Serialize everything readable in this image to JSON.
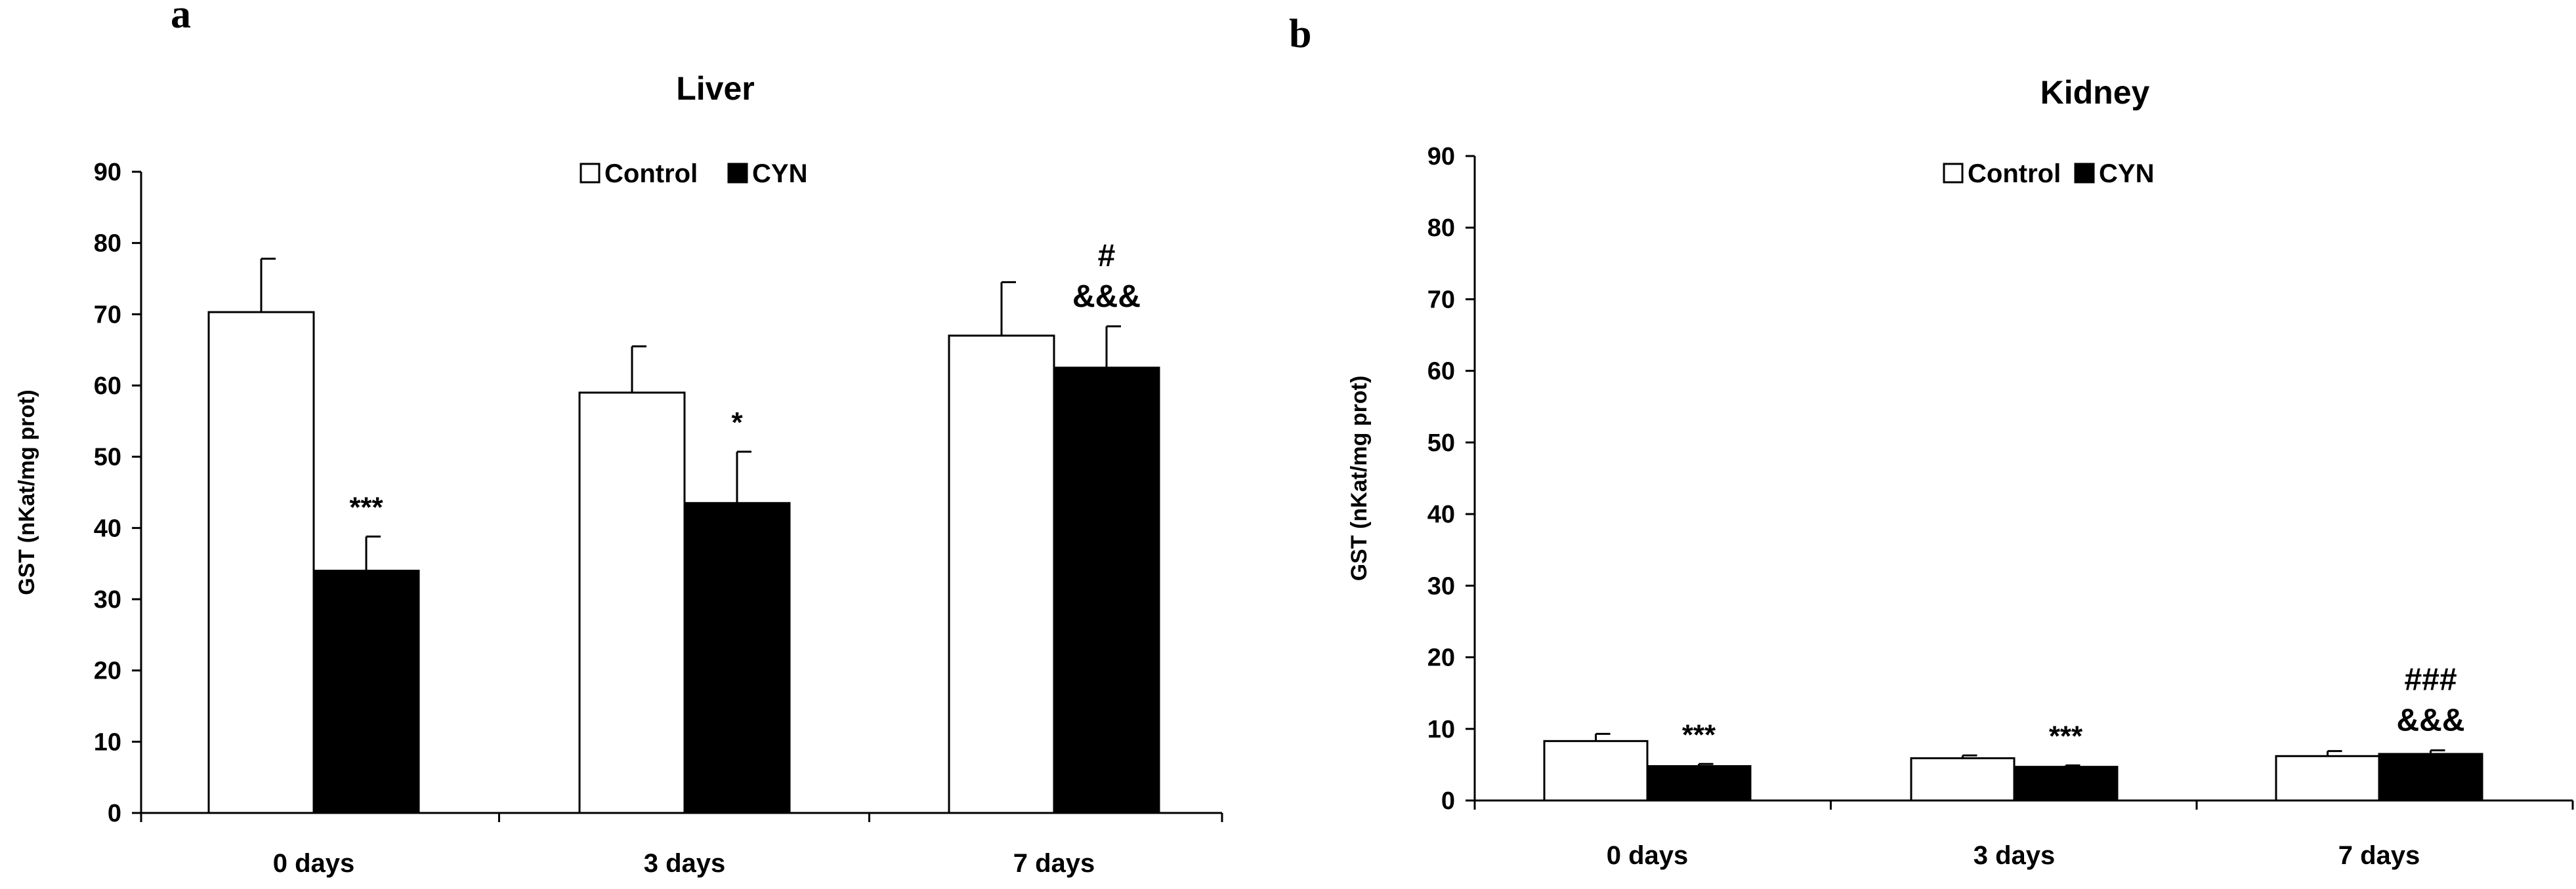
{
  "chart_data": [
    {
      "type": "bar",
      "panel_label": "a",
      "title": "Liver",
      "ylabel": "GST (nKat/mg prot)",
      "ylim": [
        0,
        90
      ],
      "yticks": [
        0,
        10,
        20,
        30,
        40,
        50,
        60,
        70,
        80,
        90
      ],
      "categories": [
        "0 days",
        "3 days",
        "7 days"
      ],
      "legend_position": "top-center",
      "grid": false,
      "series": [
        {
          "name": "Control",
          "fill": "#ffffff",
          "values": [
            70.3,
            59.0,
            67.0
          ],
          "errors": [
            7.5,
            6.5,
            7.5
          ]
        },
        {
          "name": "CYN",
          "fill": "#000000",
          "values": [
            34.0,
            43.5,
            62.5
          ],
          "errors": [
            4.8,
            7.2,
            5.8
          ]
        }
      ],
      "annotations": [
        {
          "category": 0,
          "series": 1,
          "lines": [
            "***"
          ]
        },
        {
          "category": 1,
          "series": 1,
          "lines": [
            "*"
          ]
        },
        {
          "category": 2,
          "series": 1,
          "lines": [
            "#",
            "&&&"
          ]
        }
      ]
    },
    {
      "type": "bar",
      "panel_label": "b",
      "title": "Kidney",
      "ylabel": "GST (nKat/mg prot)",
      "ylim": [
        0,
        90
      ],
      "yticks": [
        0,
        10,
        20,
        30,
        40,
        50,
        60,
        70,
        80,
        90
      ],
      "categories": [
        "0 days",
        "3 days",
        "7 days"
      ],
      "legend_position": "top-center",
      "grid": false,
      "series": [
        {
          "name": "Control",
          "fill": "#ffffff",
          "values": [
            8.3,
            5.9,
            6.2
          ],
          "errors": [
            1.0,
            0.4,
            0.7
          ]
        },
        {
          "name": "CYN",
          "fill": "#000000",
          "values": [
            4.8,
            4.7,
            6.5
          ],
          "errors": [
            0.3,
            0.2,
            0.5
          ]
        }
      ],
      "annotations": [
        {
          "category": 0,
          "series": 1,
          "lines": [
            "***"
          ]
        },
        {
          "category": 1,
          "series": 1,
          "lines": [
            "***"
          ]
        },
        {
          "category": 2,
          "series": 1,
          "lines": [
            "###",
            "&&&"
          ]
        }
      ]
    }
  ]
}
